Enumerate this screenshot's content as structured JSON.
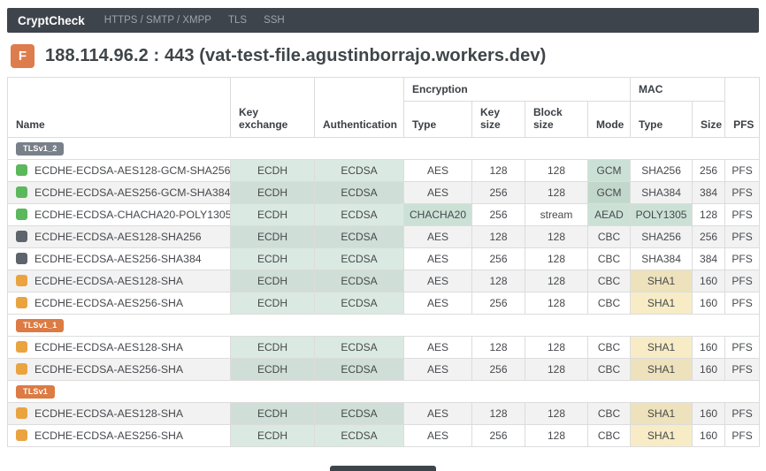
{
  "navbar": {
    "brand": "CryptCheck",
    "links": [
      {
        "label": "HTTPS / SMTP / XMPP"
      },
      {
        "label": "TLS"
      },
      {
        "label": "SSH"
      }
    ]
  },
  "header": {
    "grade": "F",
    "title": "188.114.96.2 : 443 (vat-test-file.agustinborrajo.workers.dev)"
  },
  "colors": {
    "navbar_bg": "#3e444c",
    "grade_badge_bg": "#dd7c4c",
    "badge_gray_bg": "#798089",
    "badge_orange_bg": "#dc7b44",
    "icon_green": "#5cb85c",
    "icon_gray": "#5d646b",
    "icon_orange": "#e9a440",
    "cell_good_green": "#d6e8dd",
    "cell_warn_yellow": "#f8efcb",
    "stripe_bg": "#f2f2f2"
  },
  "table": {
    "group_headers": {
      "encryption": "Encryption",
      "mac": "MAC"
    },
    "columns": [
      "Name",
      "Key exchange",
      "Authentication",
      "Type",
      "Key size",
      "Block size",
      "Mode",
      "Type",
      "Size",
      "PFS"
    ],
    "sections": [
      {
        "badge": "TLSv1_2",
        "badge_style": "gray",
        "rows": [
          {
            "icon": "green",
            "name": "ECDHE-ECDSA-AES128-GCM-SHA256",
            "key_exchange": "ECDH",
            "authentication": "ECDSA",
            "encryption_type": "AES",
            "key_size": "128",
            "block_size": "128",
            "mode": "GCM",
            "mode_good": true,
            "mac_type": "SHA256",
            "mac_size": "256",
            "pfs": "PFS",
            "striped": false
          },
          {
            "icon": "green",
            "name": "ECDHE-ECDSA-AES256-GCM-SHA384",
            "key_exchange": "ECDH",
            "authentication": "ECDSA",
            "encryption_type": "AES",
            "key_size": "256",
            "block_size": "128",
            "mode": "GCM",
            "mode_good": true,
            "mac_type": "SHA384",
            "mac_size": "384",
            "pfs": "PFS",
            "striped": true
          },
          {
            "icon": "green",
            "name": "ECDHE-ECDSA-CHACHA20-POLY1305",
            "key_exchange": "ECDH",
            "authentication": "ECDSA",
            "encryption_type": "CHACHA20",
            "encryption_good": true,
            "key_size": "256",
            "block_size": "stream",
            "mode": "AEAD",
            "mode_good": true,
            "mac_type": "POLY1305",
            "mac_good": true,
            "mac_size": "128",
            "pfs": "PFS",
            "striped": false
          },
          {
            "icon": "gray",
            "name": "ECDHE-ECDSA-AES128-SHA256",
            "key_exchange": "ECDH",
            "authentication": "ECDSA",
            "encryption_type": "AES",
            "key_size": "128",
            "block_size": "128",
            "mode": "CBC",
            "mac_type": "SHA256",
            "mac_size": "256",
            "pfs": "PFS",
            "striped": true
          },
          {
            "icon": "gray",
            "name": "ECDHE-ECDSA-AES256-SHA384",
            "key_exchange": "ECDH",
            "authentication": "ECDSA",
            "encryption_type": "AES",
            "key_size": "256",
            "block_size": "128",
            "mode": "CBC",
            "mac_type": "SHA384",
            "mac_size": "384",
            "pfs": "PFS",
            "striped": false
          },
          {
            "icon": "orange",
            "name": "ECDHE-ECDSA-AES128-SHA",
            "key_exchange": "ECDH",
            "authentication": "ECDSA",
            "encryption_type": "AES",
            "key_size": "128",
            "block_size": "128",
            "mode": "CBC",
            "mac_type": "SHA1",
            "mac_warn": true,
            "mac_size": "160",
            "pfs": "PFS",
            "striped": true
          },
          {
            "icon": "orange",
            "name": "ECDHE-ECDSA-AES256-SHA",
            "key_exchange": "ECDH",
            "authentication": "ECDSA",
            "encryption_type": "AES",
            "key_size": "256",
            "block_size": "128",
            "mode": "CBC",
            "mac_type": "SHA1",
            "mac_warn": true,
            "mac_size": "160",
            "pfs": "PFS",
            "striped": false
          }
        ]
      },
      {
        "badge": "TLSv1_1",
        "badge_style": "orange",
        "rows": [
          {
            "icon": "orange",
            "name": "ECDHE-ECDSA-AES128-SHA",
            "key_exchange": "ECDH",
            "authentication": "ECDSA",
            "encryption_type": "AES",
            "key_size": "128",
            "block_size": "128",
            "mode": "CBC",
            "mac_type": "SHA1",
            "mac_warn": true,
            "mac_size": "160",
            "pfs": "PFS",
            "striped": false
          },
          {
            "icon": "orange",
            "name": "ECDHE-ECDSA-AES256-SHA",
            "key_exchange": "ECDH",
            "authentication": "ECDSA",
            "encryption_type": "AES",
            "key_size": "256",
            "block_size": "128",
            "mode": "CBC",
            "mac_type": "SHA1",
            "mac_warn": true,
            "mac_size": "160",
            "pfs": "PFS",
            "striped": true
          }
        ]
      },
      {
        "badge": "TLSv1",
        "badge_style": "orange",
        "rows": [
          {
            "icon": "orange",
            "name": "ECDHE-ECDSA-AES128-SHA",
            "key_exchange": "ECDH",
            "authentication": "ECDSA",
            "encryption_type": "AES",
            "key_size": "128",
            "block_size": "128",
            "mode": "CBC",
            "mac_type": "SHA1",
            "mac_warn": true,
            "mac_size": "160",
            "pfs": "PFS",
            "striped": true
          },
          {
            "icon": "orange",
            "name": "ECDHE-ECDSA-AES256-SHA",
            "key_exchange": "ECDH",
            "authentication": "ECDSA",
            "encryption_type": "AES",
            "key_size": "256",
            "block_size": "128",
            "mode": "CBC",
            "mac_type": "SHA1",
            "mac_warn": true,
            "mac_size": "160",
            "pfs": "PFS",
            "striped": false
          }
        ]
      }
    ]
  }
}
